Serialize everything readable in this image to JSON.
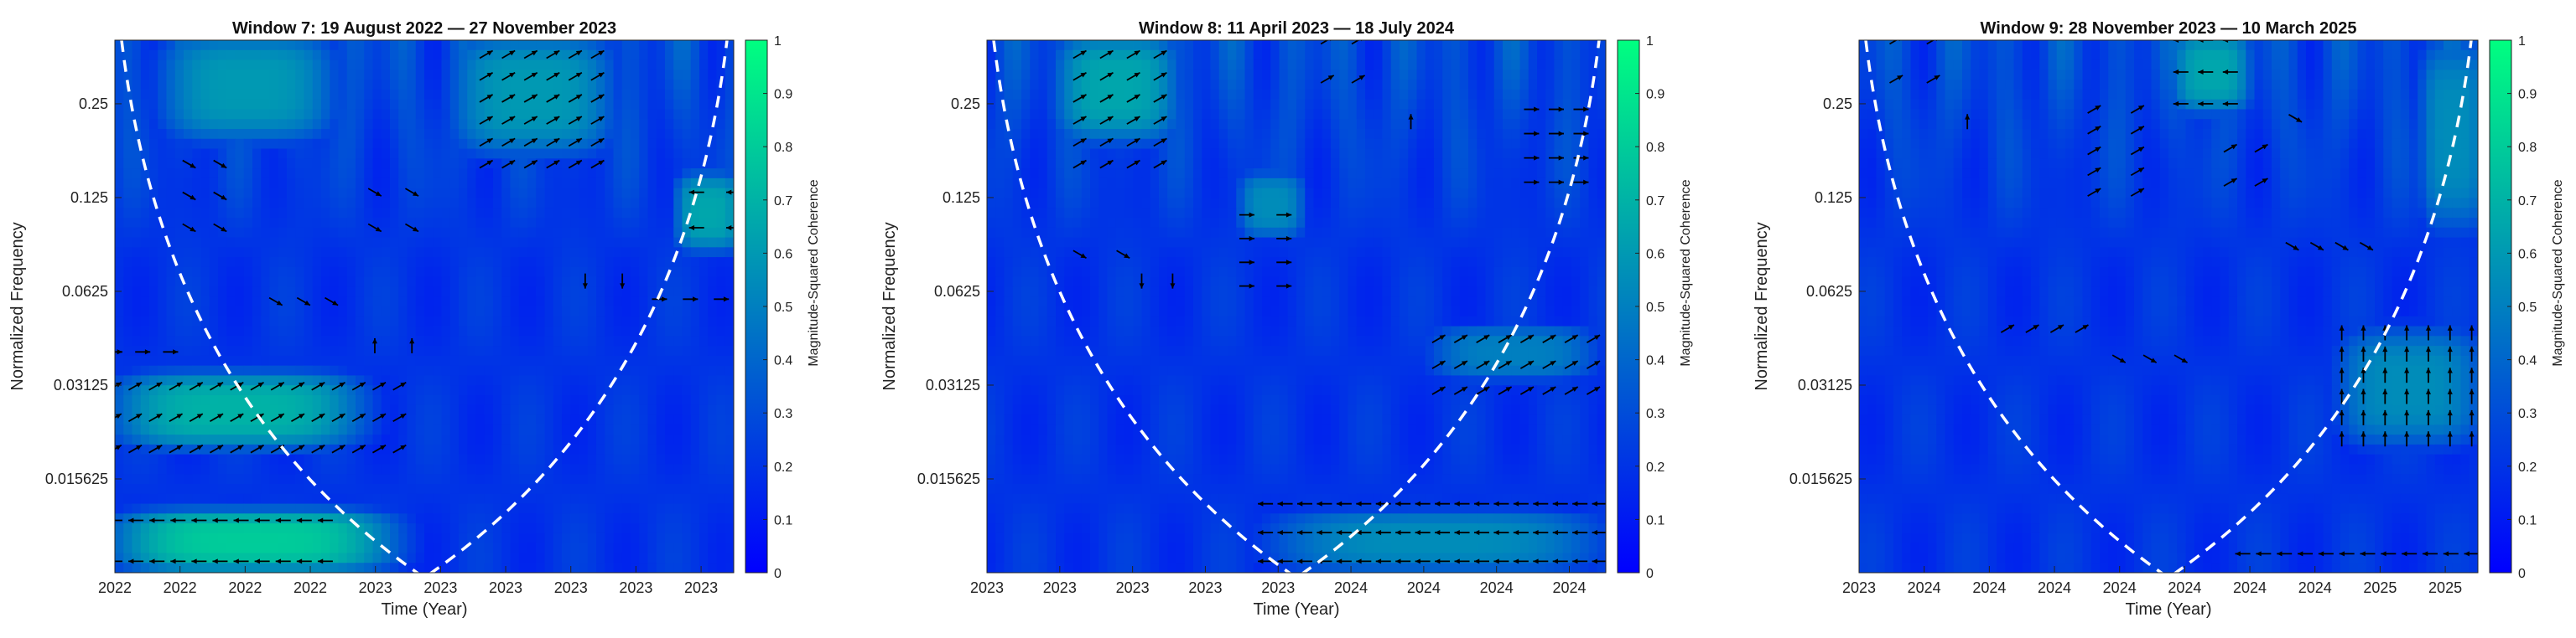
{
  "colors": {
    "low": "#0000ff",
    "high": "#00ff80",
    "coi": "#ffffff",
    "arrow": "#000000"
  },
  "colorbar": {
    "label": "Magnitude-Squared Coherence",
    "ticks": [
      "0",
      "0.1",
      "0.2",
      "0.3",
      "0.4",
      "0.5",
      "0.6",
      "0.7",
      "0.8",
      "0.9",
      "1"
    ]
  },
  "chart_data": [
    {
      "type": "heatmap",
      "title": "Window 7: 19 August 2022 — 27 November 2023",
      "xlabel": "Time (Year)",
      "ylabel": "Normalized Frequency",
      "x_tick_labels": [
        "2022",
        "2022",
        "2022",
        "2022",
        "2023",
        "2023",
        "2023",
        "2023",
        "2023",
        "2023"
      ],
      "y_tick_labels": [
        "0.25",
        "0.125",
        "0.0625",
        "0.03125",
        "0.015625"
      ],
      "y_scale": "log2",
      "ylim": [
        0.0078125,
        0.4
      ],
      "clim": [
        0,
        1
      ],
      "cone_of_influence": "dashed white",
      "high_coherence_regions": [
        {
          "t": [
            0.0,
            0.4
          ],
          "f": [
            0.021,
            0.032
          ],
          "coherence": 0.7
        },
        {
          "t": [
            0.0,
            0.45
          ],
          "f": [
            0.0085,
            0.0115
          ],
          "coherence": 0.8
        },
        {
          "t": [
            0.08,
            0.35
          ],
          "f": [
            0.2,
            0.4
          ],
          "coherence": 0.6
        },
        {
          "t": [
            0.55,
            0.8
          ],
          "f": [
            0.18,
            0.4
          ],
          "coherence": 0.6
        },
        {
          "t": [
            0.92,
            1.0
          ],
          "f": [
            0.09,
            0.14
          ],
          "coherence": 0.65
        }
      ],
      "phase_arrow_groups": [
        {
          "t": [
            0.0,
            0.09
          ],
          "f": [
            0.038,
            0.042
          ],
          "direction": "in-phase"
        },
        {
          "t": [
            0.0,
            0.46
          ],
          "f": [
            0.0195,
            0.031
          ],
          "direction": "leading"
        },
        {
          "t": [
            0.0,
            0.34
          ],
          "f": [
            0.0085,
            0.0115
          ],
          "direction": "anti-phase"
        },
        {
          "t": [
            0.12,
            0.17
          ],
          "f": [
            0.1,
            0.16
          ],
          "direction": "lagging"
        },
        {
          "t": [
            0.26,
            0.35
          ],
          "f": [
            0.056,
            0.06
          ],
          "direction": "lagging"
        },
        {
          "t": [
            0.42,
            0.48
          ],
          "f": [
            0.1,
            0.13
          ],
          "direction": "lagging"
        },
        {
          "t": [
            0.42,
            0.48
          ],
          "f": [
            0.038,
            0.046
          ],
          "direction": "up"
        },
        {
          "t": [
            0.6,
            0.78
          ],
          "f": [
            0.16,
            0.36
          ],
          "direction": "leading"
        },
        {
          "t": [
            0.76,
            0.82
          ],
          "f": [
            0.065,
            0.07
          ],
          "direction": "down"
        },
        {
          "t": [
            0.88,
            0.98
          ],
          "f": [
            0.058,
            0.06
          ],
          "direction": "in-phase"
        },
        {
          "t": [
            0.94,
            1.0
          ],
          "f": [
            0.1,
            0.13
          ],
          "direction": "anti-phase"
        }
      ]
    },
    {
      "type": "heatmap",
      "title": "Window 8: 11 April 2023 — 18 July 2024",
      "xlabel": "Time (Year)",
      "ylabel": "Normalized Frequency",
      "x_tick_labels": [
        "2023",
        "2023",
        "2023",
        "2023",
        "2023",
        "2024",
        "2024",
        "2024",
        "2024"
      ],
      "y_tick_labels": [
        "0.25",
        "0.125",
        "0.0625",
        "0.03125",
        "0.015625"
      ],
      "y_scale": "log2",
      "ylim": [
        0.0078125,
        0.4
      ],
      "clim": [
        0,
        1
      ],
      "cone_of_influence": "dashed white",
      "high_coherence_regions": [
        {
          "t": [
            0.12,
            0.3
          ],
          "f": [
            0.2,
            0.4
          ],
          "coherence": 0.65
        },
        {
          "t": [
            0.42,
            0.5
          ],
          "f": [
            0.1,
            0.14
          ],
          "coherence": 0.55
        },
        {
          "t": [
            0.45,
            1.0
          ],
          "f": [
            0.0085,
            0.0115
          ],
          "coherence": 0.55
        },
        {
          "t": [
            0.72,
            0.98
          ],
          "f": [
            0.035,
            0.045
          ],
          "coherence": 0.5
        }
      ],
      "phase_arrow_groups": [
        {
          "t": [
            0.15,
            0.28
          ],
          "f": [
            0.16,
            0.36
          ],
          "direction": "leading"
        },
        {
          "t": [
            0.15,
            0.22
          ],
          "f": [
            0.075,
            0.09
          ],
          "direction": "lagging"
        },
        {
          "t": [
            0.25,
            0.3
          ],
          "f": [
            0.065,
            0.07
          ],
          "direction": "down"
        },
        {
          "t": [
            0.42,
            0.48
          ],
          "f": [
            0.065,
            0.11
          ],
          "direction": "in-phase"
        },
        {
          "t": [
            0.55,
            0.6
          ],
          "f": [
            0.3,
            0.4
          ],
          "direction": "leading"
        },
        {
          "t": [
            0.67,
            0.7
          ],
          "f": [
            0.2,
            0.24
          ],
          "direction": "up"
        },
        {
          "t": [
            0.88,
            0.96
          ],
          "f": [
            0.14,
            0.24
          ],
          "direction": "in-phase"
        },
        {
          "t": [
            0.73,
            0.98
          ],
          "f": [
            0.03,
            0.044
          ],
          "direction": "leading"
        },
        {
          "t": [
            0.45,
            0.99
          ],
          "f": [
            0.0085,
            0.013
          ],
          "direction": "anti-phase"
        }
      ]
    },
    {
      "type": "heatmap",
      "title": "Window 9: 28 November 2023 — 10 March 2025",
      "xlabel": "Time (Year)",
      "ylabel": "Normalized Frequency",
      "x_tick_labels": [
        "2023",
        "2024",
        "2024",
        "2024",
        "2024",
        "2024",
        "2024",
        "2024",
        "2025",
        "2025"
      ],
      "y_tick_labels": [
        "0.25",
        "0.125",
        "0.0625",
        "0.03125",
        "0.015625"
      ],
      "y_scale": "log2",
      "ylim": [
        0.0078125,
        0.4
      ],
      "clim": [
        0,
        1
      ],
      "cone_of_influence": "dashed white",
      "high_coherence_regions": [
        {
          "t": [
            0.52,
            0.62
          ],
          "f": [
            0.25,
            0.4
          ],
          "coherence": 0.65
        },
        {
          "t": [
            0.78,
            1.0
          ],
          "f": [
            0.021,
            0.045
          ],
          "coherence": 0.55
        },
        {
          "t": [
            0.92,
            1.0
          ],
          "f": [
            0.1,
            0.4
          ],
          "coherence": 0.55
        }
      ],
      "phase_arrow_groups": [
        {
          "t": [
            0.06,
            0.12
          ],
          "f": [
            0.3,
            0.4
          ],
          "direction": "leading"
        },
        {
          "t": [
            0.16,
            0.19
          ],
          "f": [
            0.2,
            0.24
          ],
          "direction": "up"
        },
        {
          "t": [
            0.38,
            0.45
          ],
          "f": [
            0.13,
            0.24
          ],
          "direction": "leading"
        },
        {
          "t": [
            0.52,
            0.6
          ],
          "f": [
            0.25,
            0.4
          ],
          "direction": "anti-phase"
        },
        {
          "t": [
            0.6,
            0.65
          ],
          "f": [
            0.14,
            0.18
          ],
          "direction": "leading"
        },
        {
          "t": [
            0.69,
            0.72
          ],
          "f": [
            0.21,
            0.24
          ],
          "direction": "lagging"
        },
        {
          "t": [
            0.7,
            0.82
          ],
          "f": [
            0.08,
            0.095
          ],
          "direction": "lagging"
        },
        {
          "t": [
            0.24,
            0.36
          ],
          "f": [
            0.045,
            0.05
          ],
          "direction": "leading"
        },
        {
          "t": [
            0.42,
            0.52
          ],
          "f": [
            0.036,
            0.04
          ],
          "direction": "lagging"
        },
        {
          "t": [
            0.78,
            0.99
          ],
          "f": [
            0.021,
            0.046
          ],
          "direction": "up"
        },
        {
          "t": [
            0.62,
            0.99
          ],
          "f": [
            0.0085,
            0.0095
          ],
          "direction": "anti-phase"
        }
      ]
    }
  ]
}
